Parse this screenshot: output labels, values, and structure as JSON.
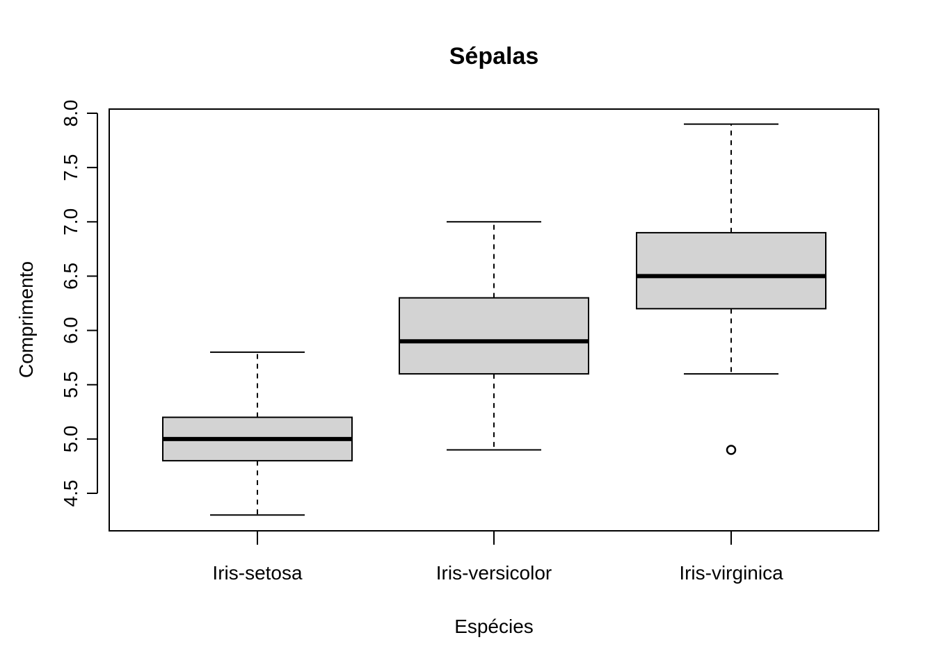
{
  "chart_data": {
    "type": "boxplot",
    "title": "Sépalas",
    "xlabel": "Espécies",
    "ylabel": "Comprimento",
    "ylim": [
      4.3,
      8.0
    ],
    "y_ticks": [
      "4.5",
      "5.0",
      "5.5",
      "6.0",
      "6.5",
      "7.0",
      "7.5",
      "8.0"
    ],
    "categories": [
      "Iris-setosa",
      "Iris-versicolor",
      "Iris-virginica"
    ],
    "box_color": "#d3d3d3",
    "boxes": [
      {
        "min": 4.3,
        "q1": 4.8,
        "median": 5.0,
        "q3": 5.2,
        "max": 5.8,
        "outliers": []
      },
      {
        "min": 4.9,
        "q1": 5.6,
        "median": 5.9,
        "q3": 6.3,
        "max": 7.0,
        "outliers": []
      },
      {
        "min": 5.6,
        "q1": 6.2,
        "median": 6.5,
        "q3": 6.9,
        "max": 7.9,
        "outliers": [
          4.9
        ]
      }
    ]
  }
}
